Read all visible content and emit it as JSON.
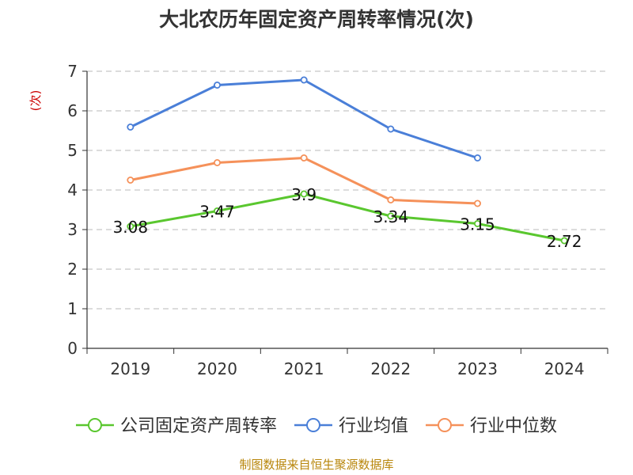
{
  "chart_data": {
    "type": "line",
    "title": "大北农历年固定资产周转率情况(次)",
    "ylabel": "(次)",
    "xlabel": "",
    "categories": [
      "2019",
      "2020",
      "2021",
      "2022",
      "2023",
      "2024"
    ],
    "ylim": [
      0,
      7
    ],
    "yticks": [
      0,
      1,
      2,
      3,
      4,
      5,
      6,
      7
    ],
    "grid": true,
    "legend_position": "bottom",
    "series": [
      {
        "name": "公司固定资产周转率",
        "color": "#5ac72f",
        "values": [
          3.08,
          3.47,
          3.9,
          3.34,
          3.15,
          2.72
        ],
        "labels": [
          "3.08",
          "3.47",
          "3.9",
          "3.34",
          "3.15",
          "2.72"
        ]
      },
      {
        "name": "行业均值",
        "color": "#4a7fd8",
        "values": [
          5.59,
          6.65,
          6.78,
          5.54,
          4.81,
          null
        ]
      },
      {
        "name": "行业中位数",
        "color": "#f5915a",
        "values": [
          4.25,
          4.69,
          4.81,
          3.75,
          3.66,
          null
        ]
      }
    ]
  },
  "source": "制图数据来自恒生聚源数据库"
}
